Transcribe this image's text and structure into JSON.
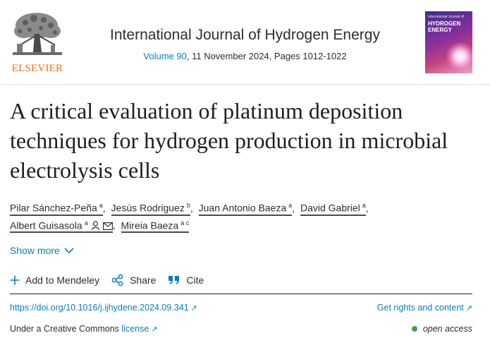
{
  "publisher": {
    "name": "ELSEVIER",
    "color": "#e9711c"
  },
  "journal": {
    "title": "International Journal of Hydrogen Energy",
    "volume_link": "Volume 90",
    "issue_info": ", 11 November 2024, Pages 1012-1022",
    "cover": {
      "small_text": "International Journal of",
      "title_line1": "HYDROGEN",
      "title_line2": "ENERGY"
    }
  },
  "article": {
    "title": "A critical evaluation of platinum deposition techniques for hydrogen production in microbial electrolysis cells"
  },
  "authors": [
    {
      "name": "Pilar Sánchez-Peña",
      "affil": "a"
    },
    {
      "name": "Jesús Rodriguez",
      "affil": "b"
    },
    {
      "name": "Juan Antonio Baeza",
      "affil": "a"
    },
    {
      "name": "David Gabriel",
      "affil": "a"
    },
    {
      "name": "Albert Guisasola",
      "affil": "a"
    },
    {
      "name": "Mireia Baeza",
      "affil": "a c"
    }
  ],
  "show_more": "Show more",
  "actions": {
    "mendeley": "Add to Mendeley",
    "share": "Share",
    "cite": "Cite"
  },
  "links": {
    "doi": "https://doi.org/10.1016/j.ijhydene.2024.09.341",
    "rights": "Get rights and content",
    "license_prefix": "Under a Creative Commons ",
    "license_link": "license",
    "open_access": "open access"
  },
  "colors": {
    "link": "#0c7dbb",
    "open_access_dot": "#3ea34a"
  }
}
